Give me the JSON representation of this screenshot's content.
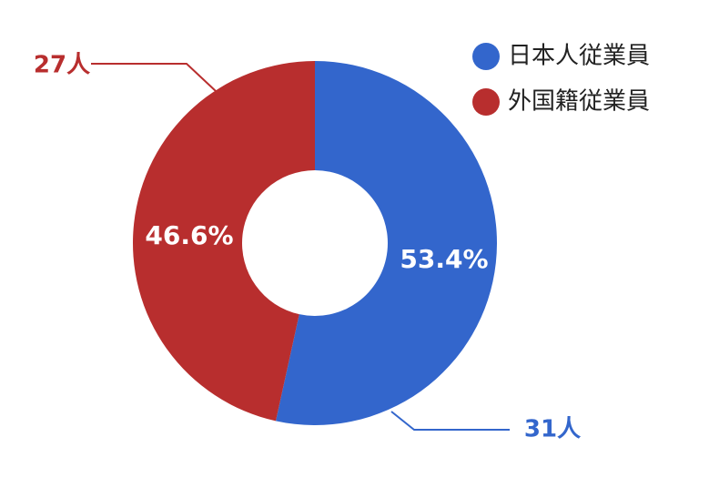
{
  "chart_data": {
    "type": "donut",
    "categories": [
      "日本人従業員",
      "外国籍従業員"
    ],
    "values": [
      31,
      27
    ],
    "value_labels": [
      "31人",
      "27人"
    ],
    "shares": [
      53.4,
      46.6
    ],
    "share_labels": [
      "53.4%",
      "46.6%"
    ],
    "colors": [
      "#3366cc",
      "#b82e2e"
    ],
    "legend": "top-right"
  }
}
